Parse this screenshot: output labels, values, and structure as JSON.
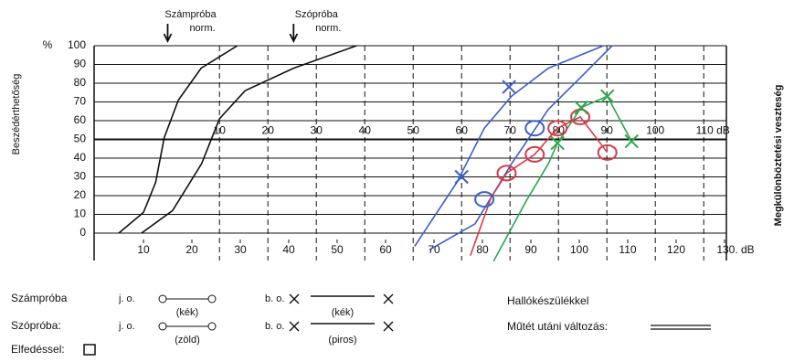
{
  "chart_data": {
    "type": "line",
    "y_label": "Beszédérthetőség",
    "y2_label": "Megkülönböztetési veszteség",
    "y_unit": "%",
    "xlim": [
      0,
      130
    ],
    "xticks": [
      10,
      20,
      30,
      40,
      50,
      60,
      70,
      80,
      90,
      100,
      110,
      120,
      {
        "value": 130,
        "label": "130. dB"
      }
    ],
    "x2lim": [
      -15.7,
      114.3
    ],
    "x2ticks": [
      10,
      20,
      30,
      40,
      50,
      60,
      70,
      80,
      90,
      100,
      {
        "value": 110,
        "label": "110 dB"
      }
    ],
    "ylim": [
      0,
      100
    ],
    "yticks": [
      0,
      10,
      20,
      30,
      40,
      50,
      60,
      70,
      80,
      90,
      100
    ],
    "annotations": [
      {
        "text": "Számpróba",
        "sub": "norm.",
        "x": 15
      },
      {
        "text": "Szópróba",
        "sub": "norm.",
        "x": 41
      }
    ],
    "series": [
      {
        "style": "line",
        "color": "#111111",
        "x": [
          4.9,
          10,
          12.5,
          14.3,
          17.2,
          21.9,
          29.4
        ],
        "values": [
          0,
          11,
          27,
          51,
          71,
          88,
          100
        ]
      },
      {
        "style": "line",
        "color": "#111111",
        "x": [
          9.6,
          16,
          22,
          25.7,
          31,
          41,
          54
        ],
        "values": [
          0,
          12,
          37,
          61,
          76,
          88,
          100
        ]
      },
      {
        "style": "line",
        "color": "#3a5fc8",
        "x": [
          66,
          74.7,
          80.4,
          86,
          93.6,
          105
        ],
        "values": [
          -7,
          27,
          56,
          73,
          88,
          100
        ]
      },
      {
        "style": "line",
        "color": "#3a5fc8",
        "x": [
          69,
          78.5,
          86,
          93.6,
          101,
          106.8
        ],
        "values": [
          -9,
          5,
          37,
          66,
          85,
          100
        ]
      },
      {
        "style": "line",
        "color": "#d83a4a",
        "x": [
          77.5,
          81.8,
          85,
          90.8,
          95.5,
          100.2,
          105.8
        ],
        "values": [
          -12,
          19,
          32,
          42,
          56,
          62,
          43
        ]
      },
      {
        "style": "line",
        "color": "#2aa84a",
        "x": [
          82.3,
          89,
          93.6,
          95.5,
          100.4,
          105.8,
          110.8
        ],
        "values": [
          -15,
          17,
          37,
          48,
          67,
          73,
          49
        ]
      },
      {
        "style": "x",
        "color": "#3a5fc8",
        "x": [
          75.7,
          85.5
        ],
        "values": [
          30,
          78
        ]
      },
      {
        "style": "o",
        "color": "#3a5fc8",
        "x": [
          80.4,
          90.8
        ],
        "values": [
          18,
          56
        ]
      },
      {
        "style": "o",
        "color": "#d83a4a",
        "x": [
          85,
          90.8,
          95.5,
          100.2,
          105.8
        ],
        "values": [
          32,
          42,
          56,
          62,
          43
        ]
      },
      {
        "style": "x",
        "color": "#2aa84a",
        "x": [
          95.5,
          100.4,
          105.8,
          110.8
        ],
        "values": [
          48,
          67,
          73,
          49
        ]
      }
    ]
  },
  "key": {
    "rows": [
      {
        "label": "Számpróba",
        "jo": "j. o.",
        "jo_color": "(kék)",
        "bo": "b. o.",
        "bo_color": "(kék)"
      },
      {
        "label": "Szópróba:",
        "jo": "j. o.",
        "jo_color": "(zöld)",
        "bo": "b. o.",
        "bo_color": "(piros)"
      }
    ],
    "masking": "Elfedéssel:",
    "hearing_aid": "Hallókészülékkel",
    "surgery": "Műtét utáni változás:"
  }
}
